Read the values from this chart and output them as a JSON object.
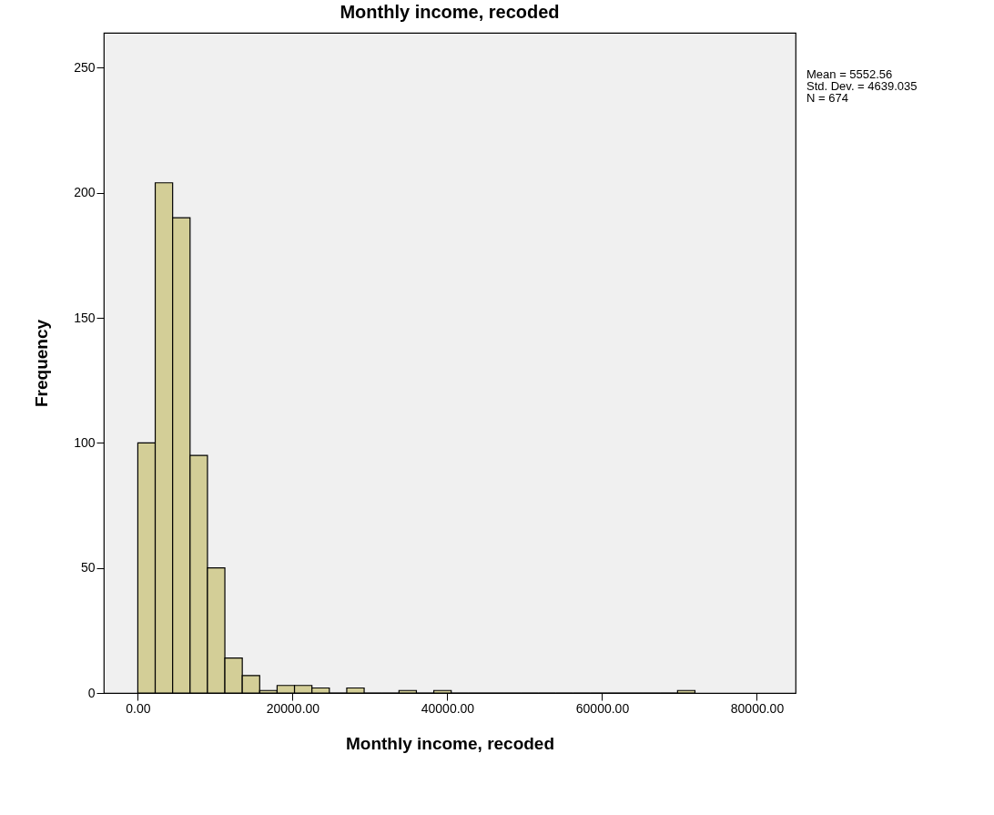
{
  "chart_data": {
    "type": "histogram",
    "title": "Monthly income, recoded",
    "xlabel": "Monthly income, recoded",
    "ylabel": "Frequency",
    "bins": [
      0,
      2250,
      4500,
      6750,
      9000,
      11250,
      13500,
      15750,
      18000,
      20250,
      22500,
      24750,
      27000,
      29250,
      31500,
      33750,
      36000,
      38250,
      40500,
      42750,
      45000,
      47250,
      49500,
      51750,
      54000,
      56250,
      58500,
      60750,
      63000,
      65250,
      67500,
      69750,
      72000
    ],
    "values": [
      100,
      204,
      190,
      95,
      50,
      14,
      7,
      1,
      3,
      3,
      2,
      0,
      2,
      0,
      0,
      1,
      0,
      1,
      0,
      0,
      0,
      0,
      0,
      0,
      0,
      0,
      0,
      0,
      0,
      0,
      0,
      1
    ],
    "color": "#d3ce97",
    "xlim": [
      -4400,
      85000
    ],
    "xticks": [
      {
        "value": 0,
        "label": "0.00"
      },
      {
        "value": 20000,
        "label": "20000.00"
      },
      {
        "value": 40000,
        "label": "40000.00"
      },
      {
        "value": 60000,
        "label": "60000.00"
      },
      {
        "value": 80000,
        "label": "80000.00"
      }
    ],
    "ylim": [
      0,
      264
    ],
    "yticks": [
      0,
      50,
      100,
      150,
      200,
      250
    ],
    "grid": false,
    "annotations": [
      "Mean = 5552.56",
      "Std. Dev. = 4639.035",
      "N = 674"
    ]
  }
}
